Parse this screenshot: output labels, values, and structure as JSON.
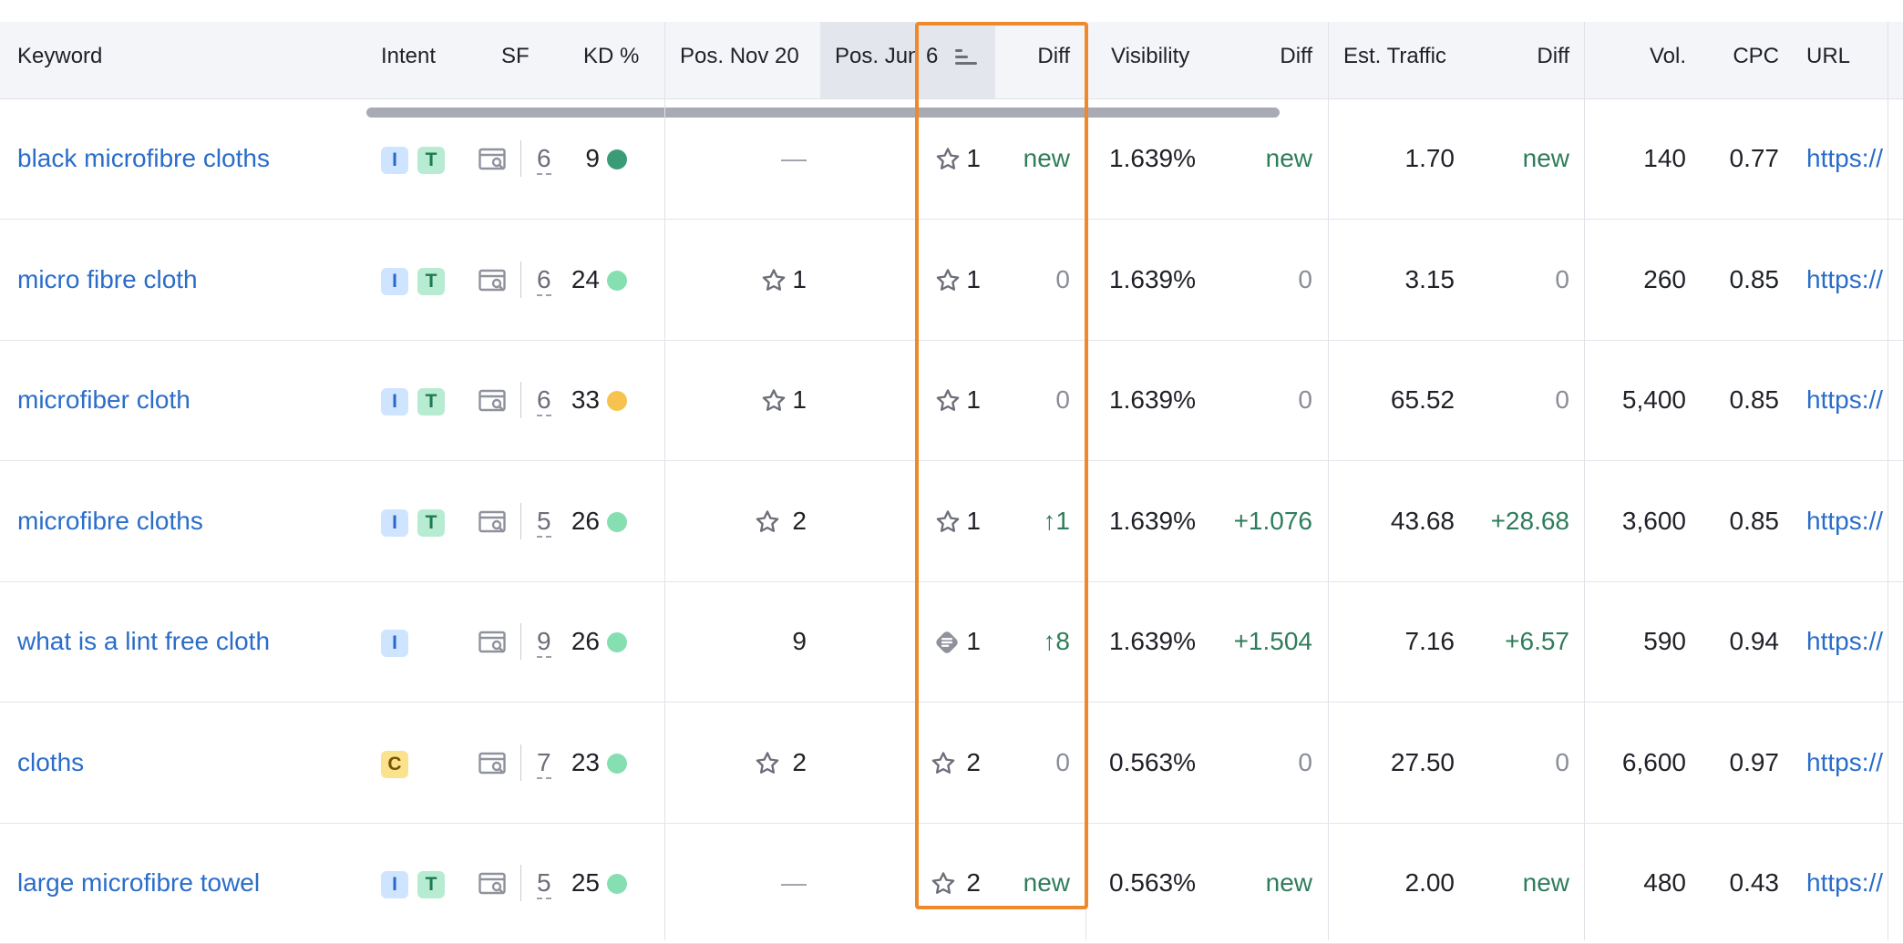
{
  "columns": {
    "keyword": "Keyword",
    "intent": "Intent",
    "sf": "SF",
    "kd": "KD %",
    "pos_nov": "Pos. Nov 20",
    "pos_jun": "Pos. Jun 6",
    "diff1": "Diff",
    "visibility": "Visibility",
    "diff2": "Diff",
    "traffic": "Est. Traffic",
    "diff3": "Diff",
    "vol": "Vol.",
    "cpc": "CPC",
    "url": "URL"
  },
  "colors": {
    "highlight": "#f0892c",
    "link": "#2a6dc9",
    "positive": "#2e7d5b",
    "kd_easy": "#86dfb1",
    "kd_very_easy": "#3a9c77",
    "kd_possible": "#f5c34e"
  },
  "rows": [
    {
      "keyword": "black microfibre cloths",
      "intents": [
        "I",
        "T"
      ],
      "sf": "6",
      "kd": "9",
      "kd_level": "very-easy",
      "pos_nov": "—",
      "pos_nov_icon": "none",
      "pos_jun": "1",
      "pos_jun_icon": "star-icon",
      "diff": "new",
      "visibility": "1.639%",
      "vis_diff": "new",
      "traffic": "1.70",
      "traffic_diff": "new",
      "vol": "140",
      "cpc": "0.77",
      "url": "https://"
    },
    {
      "keyword": "micro fibre cloth",
      "intents": [
        "I",
        "T"
      ],
      "sf": "6",
      "kd": "24",
      "kd_level": "easy",
      "pos_nov": "1",
      "pos_nov_icon": "star-icon",
      "pos_jun": "1",
      "pos_jun_icon": "star-icon",
      "diff": "0",
      "visibility": "1.639%",
      "vis_diff": "0",
      "traffic": "3.15",
      "traffic_diff": "0",
      "vol": "260",
      "cpc": "0.85",
      "url": "https://"
    },
    {
      "keyword": "microfiber cloth",
      "intents": [
        "I",
        "T"
      ],
      "sf": "6",
      "kd": "33",
      "kd_level": "possible",
      "pos_nov": "1",
      "pos_nov_icon": "star-icon",
      "pos_jun": "1",
      "pos_jun_icon": "star-icon",
      "diff": "0",
      "visibility": "1.639%",
      "vis_diff": "0",
      "traffic": "65.52",
      "traffic_diff": "0",
      "vol": "5,400",
      "cpc": "0.85",
      "url": "https://"
    },
    {
      "keyword": "microfibre cloths",
      "intents": [
        "I",
        "T"
      ],
      "sf": "5",
      "kd": "26",
      "kd_level": "easy",
      "pos_nov": "2",
      "pos_nov_icon": "star-icon",
      "pos_jun": "1",
      "pos_jun_icon": "star-icon",
      "diff": "↑1",
      "visibility": "1.639%",
      "vis_diff": "+1.076",
      "traffic": "43.68",
      "traffic_diff": "+28.68",
      "vol": "3,600",
      "cpc": "0.85",
      "url": "https://"
    },
    {
      "keyword": "what is a lint free cloth",
      "intents": [
        "I"
      ],
      "sf": "9",
      "kd": "26",
      "kd_level": "easy",
      "pos_nov": "9",
      "pos_nov_icon": "none",
      "pos_jun": "1",
      "pos_jun_icon": "featured-snippet-icon",
      "diff": "↑8",
      "visibility": "1.639%",
      "vis_diff": "+1.504",
      "traffic": "7.16",
      "traffic_diff": "+6.57",
      "vol": "590",
      "cpc": "0.94",
      "url": "https://"
    },
    {
      "keyword": "cloths",
      "intents": [
        "C"
      ],
      "sf": "7",
      "kd": "23",
      "kd_level": "easy",
      "pos_nov": "2",
      "pos_nov_icon": "star-icon",
      "pos_jun": "2",
      "pos_jun_icon": "star-icon",
      "diff": "0",
      "visibility": "0.563%",
      "vis_diff": "0",
      "traffic": "27.50",
      "traffic_diff": "0",
      "vol": "6,600",
      "cpc": "0.97",
      "url": "https://"
    },
    {
      "keyword": "large microfibre towel",
      "intents": [
        "I",
        "T"
      ],
      "sf": "5",
      "kd": "25",
      "kd_level": "easy",
      "pos_nov": "—",
      "pos_nov_icon": "none",
      "pos_jun": "2",
      "pos_jun_icon": "star-icon",
      "diff": "new",
      "visibility": "0.563%",
      "vis_diff": "new",
      "traffic": "2.00",
      "traffic_diff": "new",
      "vol": "480",
      "cpc": "0.43",
      "url": "https://"
    }
  ]
}
